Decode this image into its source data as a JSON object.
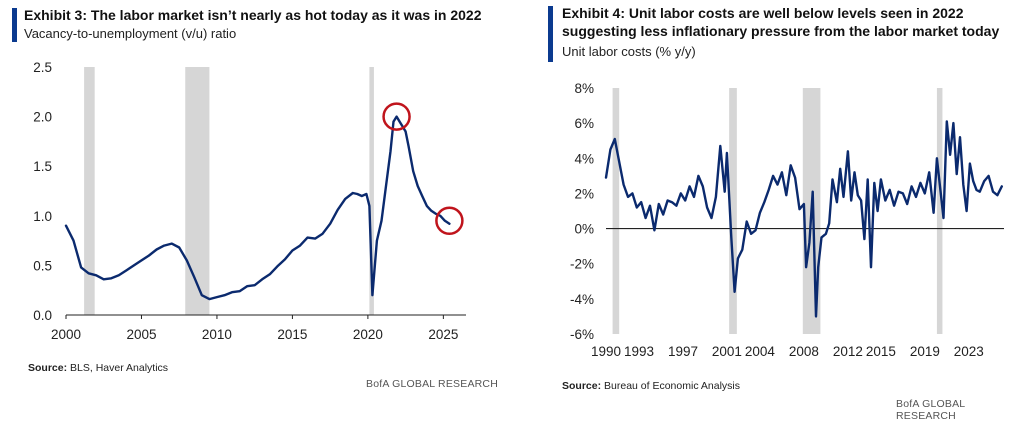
{
  "exhibit3": {
    "title": "Exhibit 3: The labor market isn’t nearly as hot today as it was in 2022",
    "subtitle": "Vacancy-to-unemployment (v/u) ratio",
    "source_label": "Source:",
    "source_text": "BLS, Haver Analytics",
    "brand": "BofA GLOBAL RESEARCH"
  },
  "exhibit4": {
    "title_line1": "Exhibit 4: Unit labor costs are well below levels seen in 2022",
    "title_line2": "suggesting less inflationary pressure from the labor market today",
    "subtitle": "Unit labor costs (% y/y)",
    "source_label": "Source:",
    "source_text": "Bureau of Economic Analysis",
    "brand": "BofA GLOBAL RESEARCH"
  },
  "colors": {
    "line": "#0b2a6e",
    "recession": "#d6d6d6",
    "circle": "#c0141c",
    "accent": "#0b3a8f"
  },
  "chart_data": [
    {
      "type": "line",
      "x_ticks": [
        "2000",
        "2005",
        "2010",
        "2015",
        "2020",
        "2025"
      ],
      "y_ticks": [
        "0.0",
        "0.5",
        "1.0",
        "1.5",
        "2.0",
        "2.5"
      ],
      "xlim": [
        2000,
        2026.5
      ],
      "ylim": [
        0,
        2.5
      ],
      "recessions": [
        [
          2001.2,
          2001.9
        ],
        [
          2007.9,
          2009.5
        ],
        [
          2020.1,
          2020.4
        ]
      ],
      "highlight_circles": [
        [
          2021.9,
          2.0
        ],
        [
          2025.4,
          0.95
        ]
      ],
      "series": [
        {
          "x": [
            2000.0,
            2000.5,
            2001.0,
            2001.5,
            2002.0,
            2002.5,
            2003.0,
            2003.5,
            2004.0,
            2004.5,
            2005.0,
            2005.5,
            2006.0,
            2006.5,
            2007.0,
            2007.5,
            2008.0,
            2008.5,
            2009.0,
            2009.5,
            2010.0,
            2010.5,
            2011.0,
            2011.5,
            2012.0,
            2012.5,
            2013.0,
            2013.5,
            2014.0,
            2014.5,
            2015.0,
            2015.5,
            2016.0,
            2016.5,
            2017.0,
            2017.5,
            2018.0,
            2018.5,
            2019.0,
            2019.3,
            2019.6,
            2019.9,
            2020.1,
            2020.3,
            2020.6,
            2020.9,
            2021.2,
            2021.5,
            2021.7,
            2021.9,
            2022.1,
            2022.3,
            2022.5,
            2022.7,
            2023.0,
            2023.3,
            2023.6,
            2023.9,
            2024.2,
            2024.5,
            2024.8,
            2025.1,
            2025.4
          ],
          "values": [
            0.9,
            0.75,
            0.48,
            0.42,
            0.4,
            0.36,
            0.37,
            0.4,
            0.45,
            0.5,
            0.55,
            0.6,
            0.66,
            0.7,
            0.72,
            0.68,
            0.55,
            0.38,
            0.2,
            0.16,
            0.18,
            0.2,
            0.23,
            0.24,
            0.29,
            0.3,
            0.36,
            0.41,
            0.49,
            0.56,
            0.65,
            0.7,
            0.78,
            0.77,
            0.82,
            0.92,
            1.06,
            1.17,
            1.23,
            1.22,
            1.2,
            1.22,
            1.1,
            0.2,
            0.75,
            0.95,
            1.3,
            1.65,
            1.95,
            2.0,
            1.95,
            1.9,
            1.85,
            1.7,
            1.45,
            1.3,
            1.2,
            1.1,
            1.05,
            1.02,
            1.0,
            0.95,
            0.92
          ]
        }
      ]
    },
    {
      "type": "line",
      "x_ticks": [
        "1990",
        "1993",
        "1997",
        "2001",
        "2004",
        "2008",
        "2012",
        "2015",
        "2019",
        "2023"
      ],
      "y_ticks": [
        "-6%",
        "-4%",
        "-2%",
        "0%",
        "2%",
        "4%",
        "6%",
        "8%"
      ],
      "xlim": [
        1990,
        2026.2
      ],
      "ylim": [
        -6,
        8
      ],
      "zero_line": 0,
      "recessions": [
        [
          1990.6,
          1991.2
        ],
        [
          2001.2,
          2001.9
        ],
        [
          2007.9,
          2009.5
        ],
        [
          2020.1,
          2020.6
        ]
      ],
      "series": [
        {
          "x": [
            1990.0,
            1990.4,
            1990.8,
            1991.2,
            1991.6,
            1992.0,
            1992.4,
            1992.8,
            1993.2,
            1993.6,
            1994.0,
            1994.4,
            1994.8,
            1995.2,
            1995.6,
            1996.0,
            1996.4,
            1996.8,
            1997.2,
            1997.6,
            1998.0,
            1998.4,
            1998.8,
            1999.2,
            1999.6,
            2000.0,
            2000.4,
            2000.8,
            2001.0,
            2001.4,
            2001.7,
            2002.0,
            2002.4,
            2002.8,
            2003.2,
            2003.6,
            2004.0,
            2004.4,
            2004.8,
            2005.2,
            2005.6,
            2006.0,
            2006.4,
            2006.8,
            2007.2,
            2007.6,
            2008.0,
            2008.2,
            2008.5,
            2008.8,
            2009.1,
            2009.3,
            2009.6,
            2010.0,
            2010.3,
            2010.6,
            2011.0,
            2011.3,
            2011.6,
            2012.0,
            2012.3,
            2012.6,
            2012.9,
            2013.2,
            2013.5,
            2013.8,
            2014.1,
            2014.4,
            2014.7,
            2015.0,
            2015.4,
            2015.8,
            2016.2,
            2016.6,
            2017.0,
            2017.4,
            2017.8,
            2018.2,
            2018.6,
            2019.0,
            2019.4,
            2019.8,
            2020.1,
            2020.4,
            2020.7,
            2021.0,
            2021.3,
            2021.6,
            2021.9,
            2022.2,
            2022.5,
            2022.8,
            2023.1,
            2023.4,
            2023.7,
            2024.0,
            2024.4,
            2024.8,
            2025.2,
            2025.6,
            2026.0
          ],
          "values": [
            2.9,
            4.5,
            5.1,
            3.8,
            2.5,
            1.8,
            2.0,
            1.2,
            1.5,
            0.6,
            1.3,
            -0.1,
            1.4,
            0.8,
            1.6,
            1.5,
            1.3,
            2.0,
            1.6,
            2.4,
            1.8,
            3.0,
            2.4,
            1.2,
            0.6,
            1.8,
            4.7,
            2.1,
            4.3,
            -0.5,
            -3.6,
            -1.7,
            -1.2,
            0.4,
            -0.3,
            -0.1,
            0.9,
            1.5,
            2.2,
            3.0,
            2.5,
            3.2,
            1.9,
            3.6,
            2.9,
            1.1,
            1.4,
            -2.2,
            -0.8,
            2.1,
            -5.0,
            -2.2,
            -0.5,
            -0.3,
            0.3,
            2.8,
            1.5,
            3.4,
            1.8,
            4.4,
            1.6,
            3.2,
            1.9,
            1.6,
            -0.6,
            2.8,
            -2.2,
            2.6,
            1.0,
            2.8,
            1.6,
            2.2,
            1.3,
            2.1,
            2.0,
            1.4,
            2.4,
            1.8,
            2.6,
            2.0,
            3.2,
            0.9,
            4.0,
            2.3,
            0.6,
            6.1,
            4.2,
            6.0,
            3.1,
            5.2,
            2.5,
            1.0,
            3.7,
            2.7,
            2.2,
            2.1,
            2.7,
            3.0,
            2.1,
            1.9,
            2.4
          ]
        }
      ]
    }
  ]
}
